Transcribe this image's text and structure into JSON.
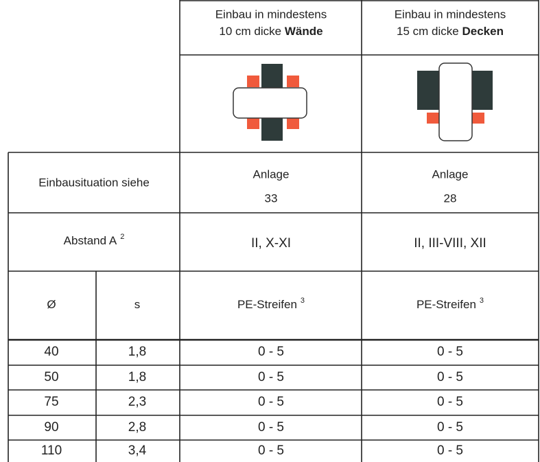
{
  "header": {
    "columns": [
      {
        "line1": "Einbau in mindestens",
        "line2": "10 cm dicke",
        "line2_bold": "Wände"
      },
      {
        "line1": "Einbau in mindestens",
        "line2": "15 cm dicke",
        "line2_bold": "Decken"
      }
    ]
  },
  "einbausituation": {
    "label": "Einbausituation siehe",
    "values": [
      {
        "line1": "Anlage",
        "line2": "33"
      },
      {
        "line1": "Anlage",
        "line2": "28"
      }
    ]
  },
  "abstand": {
    "label": "Abstand A",
    "sup": "2",
    "values": [
      "II, X-XI",
      "II, III-VIII, XII"
    ]
  },
  "table": {
    "header": [
      "Ø",
      "s",
      "PE-Streifen",
      "PE-Streifen"
    ],
    "header_sup": [
      null,
      null,
      "3",
      "3"
    ],
    "rows": [
      [
        "40",
        "1,8",
        "0 - 5",
        "0 - 5"
      ],
      [
        "50",
        "1,8",
        "0 - 5",
        "0 - 5"
      ],
      [
        "75",
        "2,3",
        "0 - 5",
        "0 - 5"
      ],
      [
        "90",
        "2,8",
        "0 - 5",
        "0 - 5"
      ],
      [
        "110",
        "3,4",
        "0 - 5",
        "0 - 5"
      ]
    ]
  }
}
